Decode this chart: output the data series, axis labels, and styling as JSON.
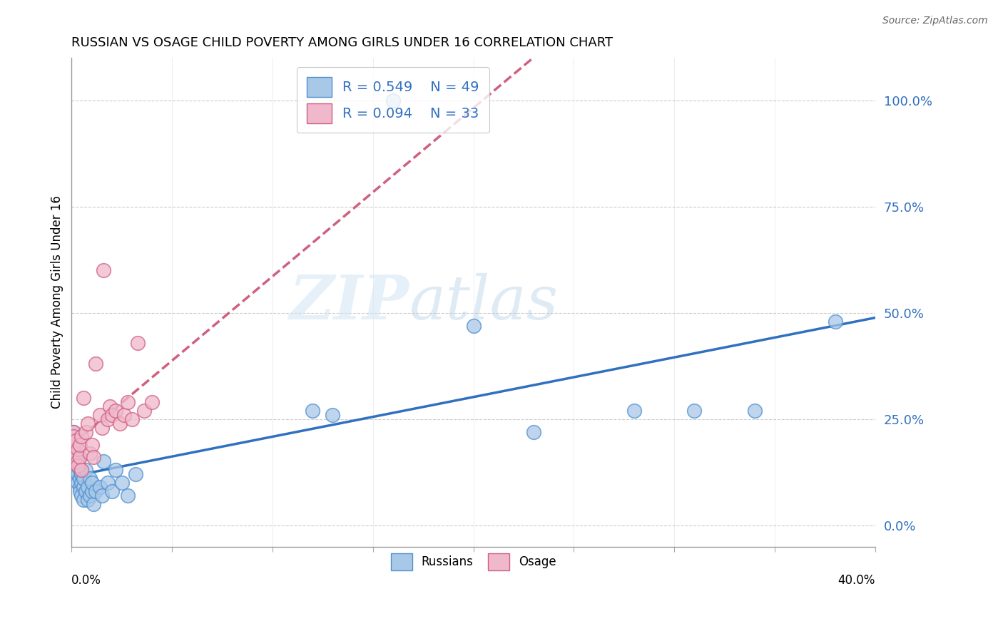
{
  "title": "RUSSIAN VS OSAGE CHILD POVERTY AMONG GIRLS UNDER 16 CORRELATION CHART",
  "source": "Source: ZipAtlas.com",
  "ylabel": "Child Poverty Among Girls Under 16",
  "right_yticks": [
    0.0,
    0.25,
    0.5,
    0.75,
    1.0
  ],
  "right_yticklabels": [
    "0.0%",
    "25.0%",
    "50.0%",
    "75.0%",
    "100.0%"
  ],
  "xlim": [
    0.0,
    0.4
  ],
  "ylim": [
    -0.05,
    1.1
  ],
  "russians_x": [
    0.001,
    0.001,
    0.001,
    0.002,
    0.002,
    0.002,
    0.002,
    0.003,
    0.003,
    0.003,
    0.003,
    0.004,
    0.004,
    0.004,
    0.004,
    0.005,
    0.005,
    0.005,
    0.006,
    0.006,
    0.006,
    0.007,
    0.007,
    0.008,
    0.008,
    0.009,
    0.009,
    0.01,
    0.01,
    0.011,
    0.012,
    0.014,
    0.015,
    0.016,
    0.018,
    0.02,
    0.022,
    0.025,
    0.028,
    0.032,
    0.12,
    0.13,
    0.16,
    0.2,
    0.23,
    0.28,
    0.31,
    0.34,
    0.38
  ],
  "russians_y": [
    0.2,
    0.18,
    0.22,
    0.17,
    0.15,
    0.13,
    0.19,
    0.14,
    0.12,
    0.1,
    0.16,
    0.11,
    0.09,
    0.13,
    0.08,
    0.1,
    0.07,
    0.12,
    0.09,
    0.06,
    0.11,
    0.08,
    0.13,
    0.06,
    0.09,
    0.07,
    0.11,
    0.08,
    0.1,
    0.05,
    0.08,
    0.09,
    0.07,
    0.15,
    0.1,
    0.08,
    0.13,
    0.1,
    0.07,
    0.12,
    0.27,
    0.26,
    1.0,
    0.47,
    0.22,
    0.27,
    0.27,
    0.27,
    0.48
  ],
  "osage_x": [
    0.001,
    0.001,
    0.001,
    0.002,
    0.002,
    0.003,
    0.003,
    0.003,
    0.004,
    0.004,
    0.005,
    0.005,
    0.006,
    0.007,
    0.008,
    0.009,
    0.01,
    0.011,
    0.012,
    0.014,
    0.015,
    0.016,
    0.018,
    0.019,
    0.02,
    0.022,
    0.024,
    0.026,
    0.028,
    0.03,
    0.033,
    0.036,
    0.04
  ],
  "osage_y": [
    0.22,
    0.19,
    0.21,
    0.17,
    0.2,
    0.15,
    0.18,
    0.14,
    0.16,
    0.19,
    0.21,
    0.13,
    0.3,
    0.22,
    0.24,
    0.17,
    0.19,
    0.16,
    0.38,
    0.26,
    0.23,
    0.6,
    0.25,
    0.28,
    0.26,
    0.27,
    0.24,
    0.26,
    0.29,
    0.25,
    0.43,
    0.27,
    0.29
  ],
  "r_russians": "0.549",
  "n_russians": "49",
  "r_osage": "0.094",
  "n_osage": "33",
  "color_russians_face": "#A8C8E8",
  "color_russians_edge": "#5090D0",
  "color_osage_face": "#F0B8CC",
  "color_osage_edge": "#D06080",
  "color_line_russians": "#3070C0",
  "color_line_osage": "#D06080",
  "watermark_zip": "ZIP",
  "watermark_atlas": "atlas",
  "background_color": "#FFFFFF",
  "grid_color": "#CCCCCC"
}
